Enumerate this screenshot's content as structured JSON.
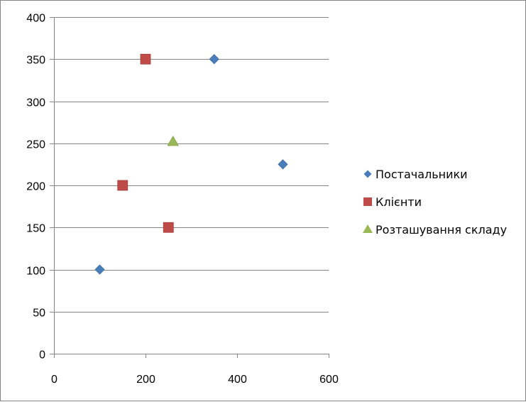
{
  "chart_data": {
    "type": "scatter",
    "title": "",
    "xlabel": "",
    "ylabel": "",
    "xlim": [
      0,
      600
    ],
    "ylim": [
      0,
      400
    ],
    "x_ticks": [
      0,
      200,
      400,
      600
    ],
    "y_ticks": [
      0,
      50,
      100,
      150,
      200,
      250,
      300,
      350,
      400
    ],
    "grid": "horizontal major gridlines",
    "legend_position": "right",
    "series": [
      {
        "name": "Постачальники",
        "marker": "diamond",
        "color": "#4A7EBB",
        "points": [
          [
            100,
            100
          ],
          [
            350,
            350
          ],
          [
            500,
            225
          ]
        ]
      },
      {
        "name": "Клієнти",
        "marker": "square",
        "color": "#BE4B48",
        "points": [
          [
            150,
            200
          ],
          [
            200,
            350
          ],
          [
            250,
            150
          ]
        ]
      },
      {
        "name": "Розташування складу",
        "marker": "triangle",
        "color": "#98B954",
        "points": [
          [
            260,
            252
          ]
        ]
      }
    ]
  }
}
